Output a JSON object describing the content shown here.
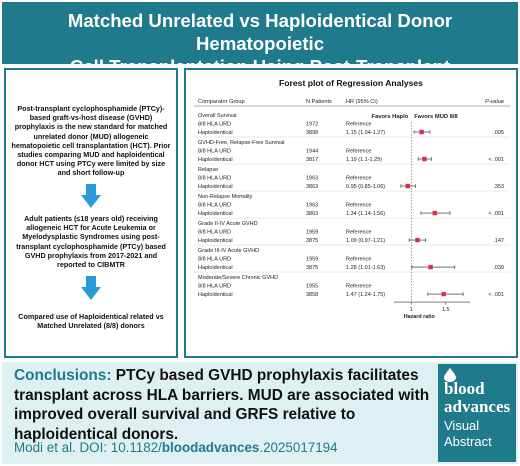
{
  "header": {
    "title_line1": "Matched Unrelated vs Haploidentical Donor Hematopoietic",
    "title_line2": "Cell Transplantation Using Post-Transplant Cyclophosphamide"
  },
  "summary": {
    "block1": "Post-transplant cyclophosphamide (PTCy)-based graft-vs-host disease (GVHD) prophylaxis is the new standard for matched unrelated donor (MUD) allogeneic hematopoietic cell transplantation (HCT). Prior studies comparing MUD and haploidentical donor HCT using PTCy were limited by size and short follow-up",
    "block2": "Adult patients (≤18 years old) receiving allogeneic HCT for Acute Leukemia or Myelodysplastic Syndromes using post-transplant cyclophosphamide (PTCy) based GVHD prophylaxis from 2017-2021 and reported to CIBMTR",
    "block3": "Compared use of Haploidentical related vs Matched Unrelated (8/8) donors"
  },
  "chart_data": {
    "type": "forest",
    "title": "Forest plot of Regression Analyses",
    "columns": [
      "Comparator Group",
      "N Patients",
      "HR (95% CI)",
      "P-value"
    ],
    "favors_left": "Favors Haplo",
    "favors_right": "Favors MUD 8/8",
    "xlabel": "Hazard ratio",
    "x_ticks": [
      1,
      1.5
    ],
    "xlim": [
      0.75,
      1.85
    ],
    "reference_line": 1,
    "outcomes": [
      {
        "name": "Overall Survival",
        "ref": {
          "group": "8/8 HLA URD",
          "n": "1972",
          "hr_text": "Reference"
        },
        "comp": {
          "group": "Haploidentical",
          "n": "3898",
          "hr_text": "1.15 (1.04-1.27)",
          "hr": 1.15,
          "lo": 1.04,
          "hi": 1.27,
          "p": ".005"
        }
      },
      {
        "name": "GVHD-Free, Relapse-Free Survival",
        "ref": {
          "group": "8/8 HLA URD",
          "n": "1944",
          "hr_text": "Reference"
        },
        "comp": {
          "group": "Haploidentical",
          "n": "3817",
          "hr_text": "1.19 (1.1-1.29)",
          "hr": 1.19,
          "lo": 1.1,
          "hi": 1.29,
          "p": "< .001"
        }
      },
      {
        "name": "Relapse",
        "ref": {
          "group": "8/8 HLA URD",
          "n": "1963",
          "hr_text": "Reference"
        },
        "comp": {
          "group": "Haploidentical",
          "n": "3863",
          "hr_text": "0.95 (0.85-1.06)",
          "hr": 0.95,
          "lo": 0.85,
          "hi": 1.06,
          "p": ".353"
        }
      },
      {
        "name": "Non-Relapse Mortality",
        "ref": {
          "group": "8/8 HLA URD",
          "n": "1963",
          "hr_text": "Reference"
        },
        "comp": {
          "group": "Haploidentical",
          "n": "3863",
          "hr_text": "1.34 (1.14-1.56)",
          "hr": 1.34,
          "lo": 1.14,
          "hi": 1.56,
          "p": "< .001"
        }
      },
      {
        "name": "Grade II-IV Acute GVHD",
        "ref": {
          "group": "8/8 HLA URD",
          "n": "1959",
          "hr_text": "Reference"
        },
        "comp": {
          "group": "Haploidentical",
          "n": "3875",
          "hr_text": "1.09 (0.97-1.21)",
          "hr": 1.09,
          "lo": 0.97,
          "hi": 1.21,
          "p": ".147"
        }
      },
      {
        "name": "Grade III-IV Acute GVHD",
        "ref": {
          "group": "8/8 HLA URD",
          "n": "1959",
          "hr_text": "Reference"
        },
        "comp": {
          "group": "Haploidentical",
          "n": "3875",
          "hr_text": "1.28 (1.01-1.63)",
          "hr": 1.28,
          "lo": 1.01,
          "hi": 1.63,
          "p": ".039"
        }
      },
      {
        "name": "Moderate/Severe Chronic GVHD",
        "ref": {
          "group": "8/8 HLA URD",
          "n": "1955",
          "hr_text": "Reference"
        },
        "comp": {
          "group": "Haploidentical",
          "n": "3858",
          "hr_text": "1.47 (1.24-1.75)",
          "hr": 1.47,
          "lo": 1.24,
          "hi": 1.75,
          "p": "< .001"
        }
      }
    ]
  },
  "conclusions": {
    "label": "Conclusions:",
    "text": "PTCy based GVHD prophylaxis facilitates transplant across HLA barriers. MUD are associated with improved overall survival and GRFS relative to haploidentical donors."
  },
  "citation": {
    "prefix": "Modi et al. DOI: 10.1182/",
    "journal": "bloodadvances",
    "suffix": ".2025017194"
  },
  "logo": {
    "line1": "blood",
    "line2": "advances",
    "line3": "Visual",
    "line4": "Abstract"
  },
  "colors": {
    "teal": "#1f7a8c",
    "marker": "#d9304a",
    "light_bg": "#dff0f2"
  }
}
